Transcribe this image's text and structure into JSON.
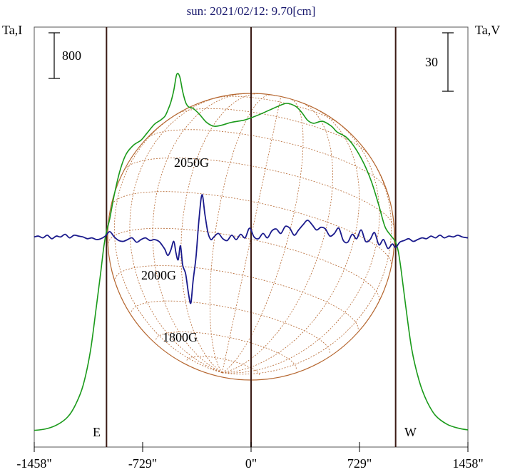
{
  "chart_data": {
    "type": "line",
    "title": "sun: 2021/02/12: 9.70[cm]",
    "left_axis_label": "Ta,I",
    "right_axis_label": "Ta,V",
    "left_scale_bar": "800",
    "right_scale_bar": "30",
    "xlim": [
      -1458,
      1458
    ],
    "x_ticks": [
      {
        "value": -1458,
        "label": "-1458\""
      },
      {
        "value": -729,
        "label": "-729\""
      },
      {
        "value": 0,
        "label": "0\""
      },
      {
        "value": 729,
        "label": "729\""
      },
      {
        "value": 1458,
        "label": "1458\""
      }
    ],
    "limb_markers": [
      {
        "value": -972,
        "label": "E"
      },
      {
        "value": 0,
        "label": ""
      },
      {
        "value": 972,
        "label": "W"
      }
    ],
    "annotations": [
      "2050G",
      "2000G",
      "1800G"
    ],
    "solar_disk": {
      "radius_arcsec": 972,
      "grid": "heliographic"
    },
    "series": [
      {
        "key": "I",
        "color": "#1a9a1a",
        "x": [
          -1458,
          -1380,
          -1300,
          -1230,
          -1180,
          -1130,
          -1080,
          -1040,
          -1010,
          -990,
          -972,
          -950,
          -920,
          -880,
          -840,
          -790,
          -740,
          -700,
          -650,
          -610,
          -580,
          -560,
          -540,
          -520,
          -500,
          -480,
          -460,
          -440,
          -420,
          -390,
          -350,
          -300,
          -250,
          -200,
          -130,
          -50,
          0,
          60,
          120,
          180,
          240,
          300,
          340,
          380,
          420,
          480,
          540,
          580,
          640,
          700,
          760,
          810,
          860,
          900,
          940,
          970,
          990,
          1010,
          1040,
          1080,
          1130,
          1180,
          1240,
          1320,
          1400,
          1458
        ],
        "values": [
          0,
          15,
          60,
          140,
          260,
          450,
          800,
          1250,
          1600,
          1850,
          2000,
          2130,
          2370,
          2620,
          2780,
          2870,
          2920,
          2990,
          3080,
          3120,
          3160,
          3220,
          3300,
          3420,
          3580,
          3560,
          3410,
          3300,
          3255,
          3240,
          3185,
          3100,
          3060,
          3070,
          3100,
          3120,
          3145,
          3180,
          3220,
          3260,
          3290,
          3260,
          3200,
          3120,
          3090,
          3110,
          3060,
          3000,
          2950,
          2840,
          2680,
          2500,
          2260,
          2050,
          1960,
          1900,
          1800,
          1600,
          1250,
          820,
          500,
          300,
          150,
          60,
          20,
          5
        ]
      },
      {
        "key": "V",
        "color": "#1a1a8c",
        "x": [
          -1458,
          -1430,
          -1400,
          -1370,
          -1340,
          -1310,
          -1280,
          -1250,
          -1220,
          -1190,
          -1160,
          -1130,
          -1100,
          -1070,
          -1040,
          -1010,
          -980,
          -950,
          -920,
          -890,
          -860,
          -830,
          -800,
          -770,
          -740,
          -710,
          -680,
          -650,
          -620,
          -600,
          -580,
          -560,
          -540,
          -520,
          -505,
          -490,
          -475,
          -460,
          -440,
          -420,
          -405,
          -390,
          -370,
          -350,
          -330,
          -310,
          -290,
          -270,
          -250,
          -220,
          -190,
          -160,
          -130,
          -100,
          -70,
          -40,
          -10,
          20,
          50,
          80,
          110,
          140,
          170,
          200,
          230,
          260,
          290,
          320,
          350,
          380,
          410,
          440,
          470,
          500,
          530,
          560,
          590,
          620,
          650,
          680,
          710,
          740,
          770,
          800,
          830,
          860,
          890,
          920,
          950,
          972,
          1000,
          1030,
          1060,
          1090,
          1120,
          1150,
          1180,
          1210,
          1240,
          1270,
          1300,
          1330,
          1360,
          1390,
          1420,
          1458
        ],
        "values": [
          0,
          1,
          -1,
          2,
          -2,
          1,
          0,
          3,
          -1,
          2,
          1,
          0,
          -2,
          -1,
          -3,
          -2,
          1,
          6,
          0,
          -4,
          -5,
          -3,
          -1,
          -6,
          -3,
          -1,
          -4,
          -3,
          -5,
          -9,
          -14,
          -21,
          -15,
          -5,
          -18,
          -26,
          -10,
          -32,
          -42,
          -65,
          -75,
          -50,
          -22,
          20,
          48,
          25,
          5,
          -3,
          0,
          4,
          -2,
          -4,
          2,
          -3,
          3,
          -1,
          10,
          0,
          -2,
          4,
          -1,
          7,
          9,
          4,
          12,
          10,
          2,
          8,
          14,
          19,
          14,
          8,
          11,
          9,
          1,
          4,
          10,
          -4,
          -6,
          3,
          -2,
          8,
          -5,
          -3,
          5,
          -9,
          -3,
          -13,
          -8,
          -12,
          -6,
          -4,
          -2,
          -5,
          -3,
          -1,
          -2,
          1,
          -1,
          2,
          -1,
          1,
          0,
          2,
          0,
          -1
        ]
      }
    ],
    "left_ylim": [
      -60,
      4000
    ],
    "right_ylim": [
      -97,
      70
    ]
  }
}
